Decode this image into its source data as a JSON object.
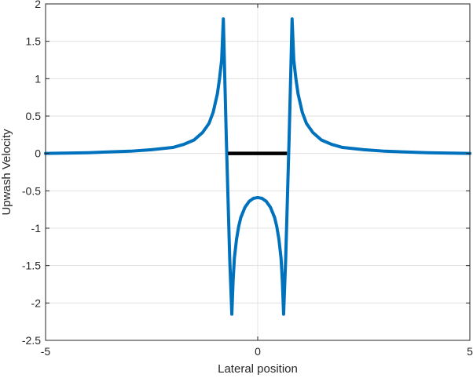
{
  "chart_data": {
    "type": "line",
    "title": "",
    "xlabel": "Lateral position",
    "ylabel": "Upwash Velocity",
    "xlim": [
      -5,
      5
    ],
    "ylim": [
      -2.5,
      2
    ],
    "xticks": [
      -5,
      0,
      5
    ],
    "xtick_labels": [
      "-5",
      "0",
      "5"
    ],
    "yticks": [
      2,
      1.5,
      1,
      0.5,
      0,
      -0.5,
      -1,
      -1.5,
      -2,
      -2.5
    ],
    "ytick_labels": [
      "2",
      "1.5",
      "1",
      "0.5",
      "0",
      "-0.5",
      "-1",
      "-1.5",
      "-2",
      "-2.5"
    ],
    "grid": true,
    "series": [
      {
        "name": "upwash",
        "color": "#0072BD",
        "x": [
          -5,
          -4,
          -3,
          -2.5,
          -2,
          -1.75,
          -1.5,
          -1.3,
          -1.15,
          -1.05,
          -0.95,
          -0.9,
          -0.85,
          -0.81,
          -0.78,
          -0.74,
          -0.7,
          -0.66,
          -0.61,
          -0.58,
          -0.55,
          -0.5,
          -0.45,
          -0.4,
          -0.3,
          -0.2,
          -0.1,
          0,
          0.1,
          0.2,
          0.3,
          0.4,
          0.45,
          0.5,
          0.55,
          0.58,
          0.61,
          0.66,
          0.7,
          0.74,
          0.78,
          0.81,
          0.85,
          0.9,
          0.95,
          1.05,
          1.15,
          1.3,
          1.5,
          1.75,
          2,
          2.5,
          3,
          4,
          5
        ],
        "y": [
          0,
          0.01,
          0.03,
          0.05,
          0.08,
          0.12,
          0.18,
          0.28,
          0.4,
          0.55,
          0.8,
          1.0,
          1.25,
          1.8,
          1.1,
          0.2,
          -0.6,
          -1.4,
          -2.15,
          -1.7,
          -1.4,
          -1.15,
          -0.98,
          -0.86,
          -0.72,
          -0.64,
          -0.6,
          -0.59,
          -0.6,
          -0.64,
          -0.72,
          -0.86,
          -0.98,
          -1.15,
          -1.4,
          -1.7,
          -2.15,
          -1.4,
          -0.6,
          0.2,
          1.1,
          1.8,
          1.25,
          1.0,
          0.8,
          0.55,
          0.4,
          0.28,
          0.18,
          0.12,
          0.08,
          0.05,
          0.03,
          0.01,
          0
        ]
      },
      {
        "name": "wing-segment",
        "color": "#000000",
        "x": [
          -0.7,
          0.69
        ],
        "y": [
          0,
          0
        ]
      }
    ],
    "legend": null
  }
}
